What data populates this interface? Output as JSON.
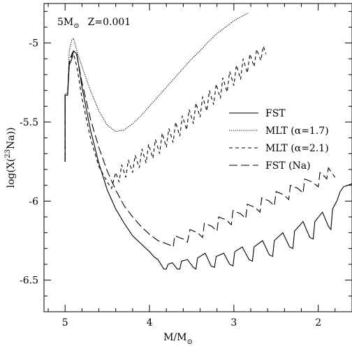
{
  "chart_data": {
    "type": "line",
    "annotation": {
      "mass": "5M",
      "mass_sub": "⊙",
      "metallicity": "Z=0.001"
    },
    "xlabel": {
      "main": "M/M",
      "sub": "⊙"
    },
    "ylabel": {
      "pre": "log(X(",
      "sup": "23",
      "post": "Na))"
    },
    "xlim": [
      5.25,
      1.6
    ],
    "ylim": [
      -6.7,
      -4.75
    ],
    "xticks_major": [
      5,
      4,
      3,
      2
    ],
    "xtick_labels": [
      "5",
      "4",
      "3",
      "2"
    ],
    "yticks_major": [
      -5,
      -5.5,
      -6,
      -6.5
    ],
    "ytick_labels": [
      "-5",
      "-5.5",
      "-6",
      "-6.5"
    ],
    "legend_position": "right-middle",
    "series": [
      {
        "name": "FST",
        "dash": "solid",
        "points": [
          [
            5.0,
            -5.75
          ],
          [
            5.0,
            -5.33
          ],
          [
            4.97,
            -5.33
          ],
          [
            4.95,
            -5.14
          ],
          [
            4.92,
            -5.1
          ],
          [
            4.9,
            -5.05
          ],
          [
            4.86,
            -5.07
          ],
          [
            4.8,
            -5.28
          ],
          [
            4.7,
            -5.55
          ],
          [
            4.6,
            -5.76
          ],
          [
            4.5,
            -5.93
          ],
          [
            4.4,
            -6.05
          ],
          [
            4.3,
            -6.14
          ],
          [
            4.2,
            -6.22
          ],
          [
            4.1,
            -6.27
          ],
          [
            4.0,
            -6.32
          ],
          [
            3.95,
            -6.35
          ],
          [
            3.93,
            -6.36
          ],
          [
            3.9,
            -6.37
          ],
          [
            3.83,
            -6.43
          ],
          [
            3.8,
            -6.43
          ],
          [
            3.78,
            -6.4
          ],
          [
            3.73,
            -6.39
          ],
          [
            3.67,
            -6.43
          ],
          [
            3.64,
            -6.43
          ],
          [
            3.62,
            -6.38
          ],
          [
            3.55,
            -6.37
          ],
          [
            3.48,
            -6.42
          ],
          [
            3.45,
            -6.43
          ],
          [
            3.43,
            -6.36
          ],
          [
            3.34,
            -6.33
          ],
          [
            3.27,
            -6.41
          ],
          [
            3.23,
            -6.42
          ],
          [
            3.21,
            -6.35
          ],
          [
            3.12,
            -6.33
          ],
          [
            3.05,
            -6.4
          ],
          [
            3.01,
            -6.41
          ],
          [
            2.99,
            -6.32
          ],
          [
            2.9,
            -6.29
          ],
          [
            2.82,
            -6.37
          ],
          [
            2.78,
            -6.38
          ],
          [
            2.76,
            -6.29
          ],
          [
            2.66,
            -6.25
          ],
          [
            2.58,
            -6.34
          ],
          [
            2.54,
            -6.35
          ],
          [
            2.52,
            -6.25
          ],
          [
            2.42,
            -6.2
          ],
          [
            2.34,
            -6.29
          ],
          [
            2.3,
            -6.3
          ],
          [
            2.28,
            -6.19
          ],
          [
            2.18,
            -6.13
          ],
          [
            2.1,
            -6.23
          ],
          [
            2.06,
            -6.24
          ],
          [
            2.04,
            -6.13
          ],
          [
            1.95,
            -6.07
          ],
          [
            1.88,
            -6.16
          ],
          [
            1.85,
            -6.18
          ],
          [
            1.83,
            -6.05
          ],
          [
            1.78,
            -6.0
          ],
          [
            1.74,
            -5.94
          ],
          [
            1.7,
            -5.91
          ],
          [
            1.65,
            -5.9
          ],
          [
            1.6,
            -5.89
          ]
        ]
      },
      {
        "name": "MLT (α=1.7)",
        "dash": "dotted",
        "points": [
          [
            5.0,
            -5.45
          ],
          [
            5.0,
            -5.32
          ],
          [
            4.97,
            -5.32
          ],
          [
            4.95,
            -5.05
          ],
          [
            4.92,
            -4.98
          ],
          [
            4.9,
            -4.97
          ],
          [
            4.86,
            -5.05
          ],
          [
            4.8,
            -5.15
          ],
          [
            4.7,
            -5.3
          ],
          [
            4.6,
            -5.43
          ],
          [
            4.5,
            -5.52
          ],
          [
            4.4,
            -5.56
          ],
          [
            4.3,
            -5.55
          ],
          [
            4.2,
            -5.51
          ],
          [
            4.1,
            -5.46
          ],
          [
            4.0,
            -5.4
          ],
          [
            3.9,
            -5.34
          ],
          [
            3.8,
            -5.28
          ],
          [
            3.7,
            -5.22
          ],
          [
            3.6,
            -5.16
          ],
          [
            3.5,
            -5.1
          ],
          [
            3.4,
            -5.05
          ],
          [
            3.3,
            -4.99
          ],
          [
            3.2,
            -4.94
          ],
          [
            3.1,
            -4.9
          ],
          [
            3.0,
            -4.86
          ],
          [
            2.9,
            -4.83
          ],
          [
            2.83,
            -4.81
          ]
        ]
      },
      {
        "name": "MLT (α=2.1)",
        "dash": "short-dash",
        "points": [
          [
            5.0,
            -5.75
          ],
          [
            5.0,
            -5.33
          ],
          [
            4.97,
            -5.33
          ],
          [
            4.95,
            -5.12
          ],
          [
            4.92,
            -5.08
          ],
          [
            4.9,
            -5.07
          ],
          [
            4.86,
            -5.15
          ],
          [
            4.8,
            -5.35
          ],
          [
            4.7,
            -5.6
          ],
          [
            4.6,
            -5.78
          ],
          [
            4.5,
            -5.88
          ],
          [
            4.45,
            -5.92
          ],
          [
            4.4,
            -5.82
          ],
          [
            4.36,
            -5.88
          ],
          [
            4.33,
            -5.77
          ],
          [
            4.28,
            -5.85
          ],
          [
            4.25,
            -5.74
          ],
          [
            4.2,
            -5.82
          ],
          [
            4.17,
            -5.71
          ],
          [
            4.12,
            -5.79
          ],
          [
            4.09,
            -5.67
          ],
          [
            4.04,
            -5.76
          ],
          [
            4.01,
            -5.64
          ],
          [
            3.96,
            -5.73
          ],
          [
            3.93,
            -5.61
          ],
          [
            3.88,
            -5.7
          ],
          [
            3.85,
            -5.57
          ],
          [
            3.8,
            -5.66
          ],
          [
            3.77,
            -5.54
          ],
          [
            3.72,
            -5.63
          ],
          [
            3.69,
            -5.5
          ],
          [
            3.64,
            -5.59
          ],
          [
            3.61,
            -5.46
          ],
          [
            3.56,
            -5.55
          ],
          [
            3.53,
            -5.42
          ],
          [
            3.48,
            -5.51
          ],
          [
            3.45,
            -5.38
          ],
          [
            3.4,
            -5.47
          ],
          [
            3.37,
            -5.34
          ],
          [
            3.32,
            -5.43
          ],
          [
            3.29,
            -5.3
          ],
          [
            3.24,
            -5.39
          ],
          [
            3.21,
            -5.26
          ],
          [
            3.16,
            -5.35
          ],
          [
            3.13,
            -5.22
          ],
          [
            3.08,
            -5.31
          ],
          [
            3.05,
            -5.18
          ],
          [
            3.0,
            -5.27
          ],
          [
            2.97,
            -5.14
          ],
          [
            2.92,
            -5.23
          ],
          [
            2.89,
            -5.1
          ],
          [
            2.84,
            -5.19
          ],
          [
            2.81,
            -5.07
          ],
          [
            2.76,
            -5.15
          ],
          [
            2.73,
            -5.04
          ],
          [
            2.68,
            -5.11
          ],
          [
            2.65,
            -5.02
          ],
          [
            2.62,
            -5.07
          ]
        ]
      },
      {
        "name": "FST (Na)",
        "dash": "long-dash",
        "points": [
          [
            5.0,
            -5.75
          ],
          [
            5.0,
            -5.33
          ],
          [
            4.97,
            -5.33
          ],
          [
            4.95,
            -5.12
          ],
          [
            4.92,
            -5.07
          ],
          [
            4.9,
            -5.05
          ],
          [
            4.86,
            -5.08
          ],
          [
            4.8,
            -5.25
          ],
          [
            4.7,
            -5.48
          ],
          [
            4.6,
            -5.66
          ],
          [
            4.5,
            -5.81
          ],
          [
            4.4,
            -5.93
          ],
          [
            4.3,
            -6.03
          ],
          [
            4.2,
            -6.1
          ],
          [
            4.1,
            -6.16
          ],
          [
            4.0,
            -6.21
          ],
          [
            3.9,
            -6.25
          ],
          [
            3.8,
            -6.27
          ],
          [
            3.75,
            -6.28
          ],
          [
            3.72,
            -6.29
          ],
          [
            3.7,
            -6.22
          ],
          [
            3.6,
            -6.24
          ],
          [
            3.55,
            -6.26
          ],
          [
            3.52,
            -6.18
          ],
          [
            3.43,
            -6.2
          ],
          [
            3.37,
            -6.23
          ],
          [
            3.35,
            -6.14
          ],
          [
            3.26,
            -6.16
          ],
          [
            3.2,
            -6.19
          ],
          [
            3.18,
            -6.1
          ],
          [
            3.09,
            -6.12
          ],
          [
            3.03,
            -6.15
          ],
          [
            3.01,
            -6.06
          ],
          [
            2.92,
            -6.08
          ],
          [
            2.86,
            -6.11
          ],
          [
            2.84,
            -6.02
          ],
          [
            2.75,
            -6.04
          ],
          [
            2.69,
            -6.07
          ],
          [
            2.67,
            -5.98
          ],
          [
            2.58,
            -6.0
          ],
          [
            2.52,
            -6.03
          ],
          [
            2.5,
            -5.94
          ],
          [
            2.41,
            -5.96
          ],
          [
            2.35,
            -5.99
          ],
          [
            2.33,
            -5.9
          ],
          [
            2.24,
            -5.92
          ],
          [
            2.18,
            -5.95
          ],
          [
            2.16,
            -5.86
          ],
          [
            2.07,
            -5.88
          ],
          [
            2.0,
            -5.91
          ],
          [
            1.98,
            -5.82
          ],
          [
            1.95,
            -5.83
          ],
          [
            1.9,
            -5.86
          ],
          [
            1.88,
            -5.79
          ],
          [
            1.84,
            -5.82
          ],
          [
            1.8,
            -5.85
          ]
        ]
      }
    ]
  }
}
